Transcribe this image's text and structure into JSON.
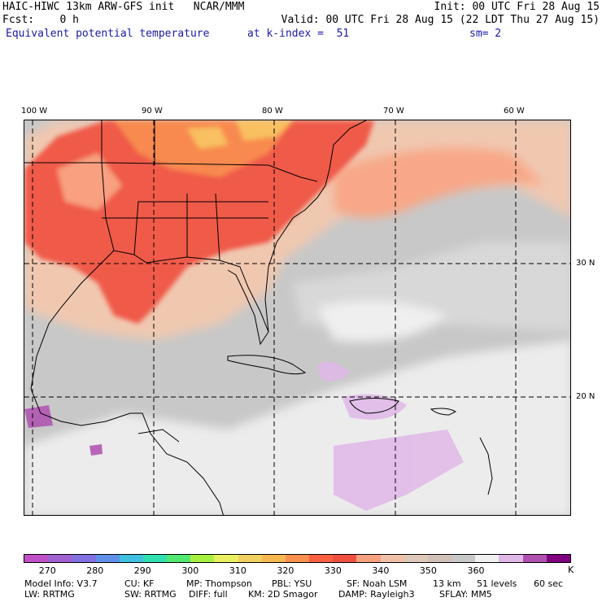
{
  "header": {
    "model_title": "HAIC-HIWC 13km ARW-GFS init   NCAR/MMM",
    "init": "Init: 00 UTC Fri 28 Aug 15",
    "fcst": "Fcst:    0 h",
    "valid": "Valid: 00 UTC Fri 28 Aug 15 (22 LDT Thu 27 Aug 15)",
    "field": "Equivalent potential temperature",
    "level": "at k-index =  51",
    "smooth": "sm= 2"
  },
  "map": {
    "longitude_labels": [
      "100 W",
      "90 W",
      "80 W",
      "70 W",
      "60 W"
    ],
    "latitude_labels": [
      "30 N",
      "20 N"
    ]
  },
  "colorbar": {
    "colors": [
      "#c050c8",
      "#a060d0",
      "#8070e0",
      "#6090e8",
      "#40c0e0",
      "#30e0b0",
      "#50e870",
      "#a8f040",
      "#e8f060",
      "#f0d060",
      "#f8b850",
      "#f89050",
      "#f86040",
      "#f05040",
      "#f8a080",
      "#f0c0a8",
      "#e0c8b8",
      "#d0c0b8",
      "#c8c8c8",
      "#f0f0f0",
      "#e0b8e8",
      "#b050b0",
      "#800080"
    ],
    "tick_labels": [
      "270",
      "280",
      "290",
      "300",
      "310",
      "320",
      "330",
      "340",
      "350",
      "360"
    ],
    "unit": "K"
  },
  "footer": {
    "line1": [
      "Model Info: V3.7",
      "CU: KF",
      "MP: Thompson",
      "PBL: YSU",
      "SF: Noah LSM",
      "13 km",
      "51 levels",
      "60 sec"
    ],
    "line2": [
      "LW: RRTMG",
      "SW: RRTMG",
      "DIFF: full",
      "KM: 2D Smagor",
      "DAMP: Rayleigh3",
      "SFLAY: MM5"
    ]
  }
}
